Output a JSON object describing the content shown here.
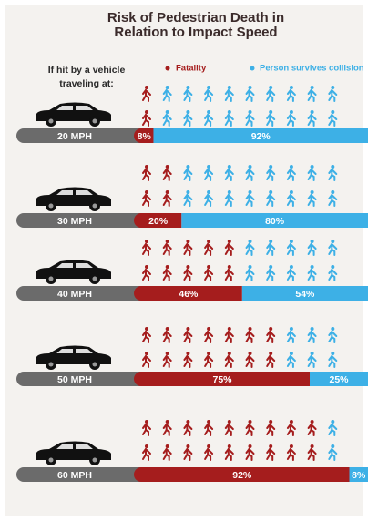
{
  "chart_data": {
    "type": "bar",
    "orientation": "horizontal",
    "stacked": true,
    "title": "Risk of Pedestrian Death in Relation to Impact Speed",
    "subtitle": "If hit by a vehicle traveling at:",
    "categories": [
      "20 MPH",
      "30 MPH",
      "40 MPH",
      "50 MPH",
      "60 MPH"
    ],
    "series": [
      {
        "name": "Fatality",
        "color": "#a51d1d",
        "values": [
          8,
          20,
          46,
          75,
          92
        ],
        "value_labels": [
          "8%",
          "20%",
          "46%",
          "75%",
          "92%"
        ]
      },
      {
        "name": "Person survives collision",
        "color": "#3db0e6",
        "values": [
          92,
          80,
          54,
          25,
          8
        ],
        "value_labels": [
          "92%",
          "80%",
          "54%",
          "25%",
          "8%"
        ]
      }
    ]
  }
}
